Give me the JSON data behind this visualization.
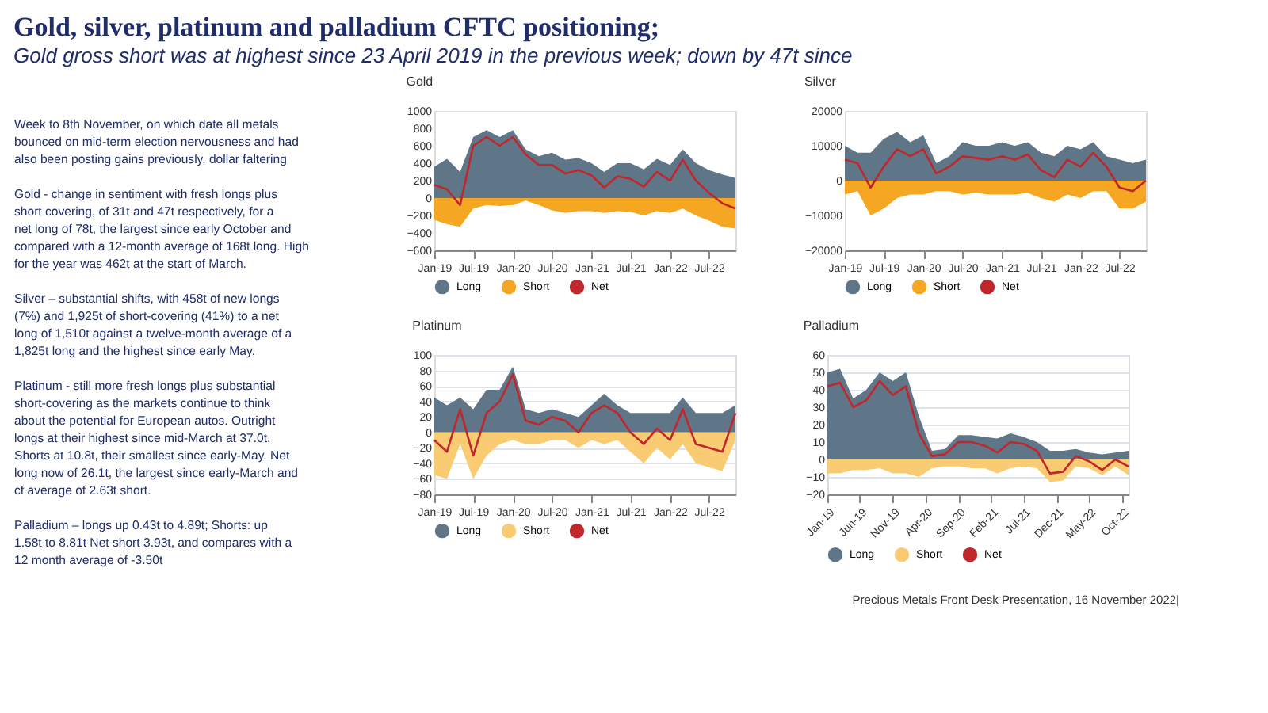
{
  "chart_data": [
    {
      "type": "other",
      "title": "Gold, silver, platinum and palladium CFTC positioning;",
      "subtitle": "Gold gross short was at highest since 23 April 2019 in the previous week; down by 47t since",
      "annotations": [
        "Week to 8th November, on which date all metals bounced on mid-term election nervousness and had also been posting gains previously, dollar faltering",
        "Gold - change in sentiment with fresh longs plus short covering, of 31t and 47t respectively, for a net long of 78t, the largest since early October and compared with a 12-month average of 168t long. High for the year was 462t at the start of March.",
        "Silver – substantial shifts, with 458t of new longs (7%) and 1,925t of short-covering (41%) to a net long of 1,510t against a twelve-month average of a 1,825t long and the highest since early May.",
        "Platinum  - still more fresh longs plus substantial short-covering as the markets continue to think about the potential for European autos.  Outright longs at their highest since mid-March at 37.0t. Shorts at 10.8t, their smallest since early-May. Net long now of 26.1t, the largest since early-March and cf average of 2.63t short.",
        "Palladium – longs up 0.43t to 4.89t; Shorts: up 1.58t to 8.81t Net short 3.93t, and compares with a 12 month average of -3.50t",
        "Precious Metals Front Desk Presentation, 16 November 2022|"
      ]
    },
    {
      "type": "area",
      "title": "Gold",
      "x": [
        "2019-01",
        "2019-03",
        "2019-05",
        "2019-07",
        "2019-09",
        "2019-11",
        "2020-01",
        "2020-03",
        "2020-05",
        "2020-07",
        "2020-09",
        "2020-11",
        "2021-01",
        "2021-03",
        "2021-05",
        "2021-07",
        "2021-09",
        "2021-11",
        "2022-01",
        "2022-03",
        "2022-05",
        "2022-07",
        "2022-09",
        "2022-11"
      ],
      "xlim": [
        "2019-01",
        "2022-11"
      ],
      "xticks": [
        {
          "value": "2019-01",
          "label": "Jan-19"
        },
        {
          "value": "2019-07",
          "label": "Jul-19"
        },
        {
          "value": "2020-01",
          "label": "Jan-20"
        },
        {
          "value": "2020-07",
          "label": "Jul-20"
        },
        {
          "value": "2021-01",
          "label": "Jan-21"
        },
        {
          "value": "2021-07",
          "label": "Jul-21"
        },
        {
          "value": "2022-01",
          "label": "Jan-22"
        },
        {
          "value": "2022-07",
          "label": "Jul-22"
        }
      ],
      "ylim": [
        -600,
        1000
      ],
      "yticks": [
        -600,
        -400,
        -200,
        0,
        200,
        400,
        600,
        800,
        1000
      ],
      "legend": "bottom",
      "grid": false,
      "series": [
        {
          "name": "Long",
          "type": "area",
          "color": "#5f7689",
          "values": [
            360,
            450,
            300,
            700,
            780,
            700,
            780,
            560,
            480,
            520,
            440,
            460,
            400,
            300,
            400,
            400,
            330,
            450,
            380,
            560,
            400,
            320,
            270,
            230
          ]
        },
        {
          "name": "Short",
          "type": "area",
          "color": "#f5a623",
          "values": [
            -250,
            -300,
            -330,
            -120,
            -80,
            -90,
            -80,
            -30,
            -80,
            -140,
            -170,
            -150,
            -150,
            -170,
            -150,
            -160,
            -200,
            -150,
            -170,
            -120,
            -200,
            -260,
            -330,
            -350
          ]
        },
        {
          "name": "Net",
          "type": "line",
          "color": "#c0272d",
          "values": [
            150,
            100,
            -80,
            600,
            700,
            600,
            700,
            500,
            380,
            380,
            280,
            320,
            260,
            120,
            250,
            220,
            130,
            300,
            200,
            440,
            200,
            60,
            -60,
            -120
          ]
        }
      ]
    },
    {
      "type": "area",
      "title": "Silver",
      "x": [
        "2019-01",
        "2019-03",
        "2019-05",
        "2019-07",
        "2019-09",
        "2019-11",
        "2020-01",
        "2020-03",
        "2020-05",
        "2020-07",
        "2020-09",
        "2020-11",
        "2021-01",
        "2021-03",
        "2021-05",
        "2021-07",
        "2021-09",
        "2021-11",
        "2022-01",
        "2022-03",
        "2022-05",
        "2022-07",
        "2022-09",
        "2022-11"
      ],
      "xlim": [
        "2019-01",
        "2022-11"
      ],
      "xticks": [
        {
          "value": "2019-01",
          "label": "Jan-19"
        },
        {
          "value": "2019-07",
          "label": "Jul-19"
        },
        {
          "value": "2020-01",
          "label": "Jan-20"
        },
        {
          "value": "2020-07",
          "label": "Jul-20"
        },
        {
          "value": "2021-01",
          "label": "Jan-21"
        },
        {
          "value": "2021-07",
          "label": "Jul-21"
        },
        {
          "value": "2022-01",
          "label": "Jan-22"
        },
        {
          "value": "2022-07",
          "label": "Jul-22"
        }
      ],
      "ylim": [
        -20000,
        20000
      ],
      "yticks": [
        -20000,
        -10000,
        0,
        10000,
        20000
      ],
      "legend": "bottom",
      "grid": false,
      "series": [
        {
          "name": "Long",
          "type": "area",
          "color": "#5f7689",
          "values": [
            10000,
            8000,
            8000,
            12000,
            14000,
            11000,
            13000,
            5000,
            7000,
            11000,
            10000,
            10000,
            11000,
            10000,
            11000,
            8000,
            7000,
            10000,
            9000,
            11000,
            7000,
            6000,
            5000,
            6000
          ]
        },
        {
          "name": "Short",
          "type": "area",
          "color": "#f5a623",
          "values": [
            -4000,
            -3000,
            -10000,
            -8000,
            -5000,
            -4000,
            -4000,
            -3000,
            -3000,
            -4000,
            -3500,
            -4000,
            -4000,
            -4000,
            -3500,
            -5000,
            -6000,
            -4000,
            -5000,
            -3000,
            -3000,
            -8000,
            -8000,
            -6000
          ]
        },
        {
          "name": "Net",
          "type": "line",
          "color": "#c0272d",
          "values": [
            6000,
            5000,
            -2000,
            4000,
            9000,
            7000,
            9000,
            2000,
            4000,
            7000,
            6500,
            6000,
            7000,
            6000,
            7500,
            3000,
            1000,
            6000,
            4000,
            8000,
            4000,
            -2000,
            -3000,
            0
          ]
        }
      ]
    },
    {
      "type": "area",
      "title": "Platinum",
      "x": [
        "2019-01",
        "2019-03",
        "2019-05",
        "2019-07",
        "2019-09",
        "2019-11",
        "2020-01",
        "2020-03",
        "2020-05",
        "2020-07",
        "2020-09",
        "2020-11",
        "2021-01",
        "2021-03",
        "2021-05",
        "2021-07",
        "2021-09",
        "2021-11",
        "2022-01",
        "2022-03",
        "2022-05",
        "2022-07",
        "2022-09",
        "2022-11"
      ],
      "xlim": [
        "2019-01",
        "2022-11"
      ],
      "xticks": [
        {
          "value": "2019-01",
          "label": "Jan-19"
        },
        {
          "value": "2019-07",
          "label": "Jul-19"
        },
        {
          "value": "2020-01",
          "label": "Jan-20"
        },
        {
          "value": "2020-07",
          "label": "Jul-20"
        },
        {
          "value": "2021-01",
          "label": "Jan-21"
        },
        {
          "value": "2021-07",
          "label": "Jul-21"
        },
        {
          "value": "2022-01",
          "label": "Jan-22"
        },
        {
          "value": "2022-07",
          "label": "Jul-22"
        }
      ],
      "ylim": [
        -80,
        100
      ],
      "yticks": [
        -80,
        -60,
        -40,
        -20,
        0,
        20,
        40,
        60,
        80,
        100
      ],
      "legend": "bottom",
      "grid": "y",
      "series": [
        {
          "name": "Long",
          "type": "area",
          "color": "#5f7689",
          "values": [
            45,
            35,
            45,
            30,
            55,
            55,
            85,
            30,
            25,
            30,
            25,
            20,
            35,
            50,
            35,
            25,
            25,
            25,
            25,
            45,
            25,
            25,
            25,
            35
          ]
        },
        {
          "name": "Short",
          "type": "area",
          "color": "#f9cb73",
          "values": [
            -55,
            -60,
            -15,
            -60,
            -30,
            -15,
            -10,
            -15,
            -15,
            -10,
            -10,
            -20,
            -10,
            -15,
            -10,
            -25,
            -40,
            -20,
            -35,
            -15,
            -40,
            -45,
            -50,
            -10
          ]
        },
        {
          "name": "Net",
          "type": "line",
          "color": "#c0272d",
          "values": [
            -10,
            -25,
            30,
            -30,
            25,
            40,
            75,
            15,
            10,
            20,
            15,
            0,
            25,
            35,
            25,
            0,
            -15,
            5,
            -10,
            30,
            -15,
            -20,
            -25,
            25
          ]
        }
      ]
    },
    {
      "type": "area",
      "title": "Palladium",
      "x": [
        "2019-01",
        "2019-03",
        "2019-05",
        "2019-07",
        "2019-09",
        "2019-11",
        "2020-01",
        "2020-03",
        "2020-05",
        "2020-07",
        "2020-09",
        "2020-11",
        "2021-01",
        "2021-03",
        "2021-05",
        "2021-07",
        "2021-09",
        "2021-11",
        "2022-01",
        "2022-03",
        "2022-05",
        "2022-07",
        "2022-09",
        "2022-11"
      ],
      "xlim": [
        "2019-01",
        "2022-11"
      ],
      "xticks": [
        {
          "value": "2019-01",
          "label": "Jan-19"
        },
        {
          "value": "2019-06",
          "label": "Jun-19"
        },
        {
          "value": "2019-11",
          "label": "Nov-19"
        },
        {
          "value": "2020-04",
          "label": "Apr-20"
        },
        {
          "value": "2020-09",
          "label": "Sep-20"
        },
        {
          "value": "2021-02",
          "label": "Feb-21"
        },
        {
          "value": "2021-07",
          "label": "Jul-21"
        },
        {
          "value": "2021-12",
          "label": "Dec-21"
        },
        {
          "value": "2022-05",
          "label": "May-22"
        },
        {
          "value": "2022-10",
          "label": "Oct-22"
        }
      ],
      "ylim": [
        -20,
        60
      ],
      "yticks": [
        -20,
        -10,
        0,
        10,
        20,
        30,
        40,
        50,
        60
      ],
      "legend": "bottom",
      "grid": "y",
      "series": [
        {
          "name": "Long",
          "type": "area",
          "color": "#5f7689",
          "values": [
            50,
            52,
            35,
            40,
            50,
            45,
            50,
            25,
            5,
            6,
            14,
            14,
            13,
            12,
            15,
            13,
            10,
            5,
            5,
            6,
            4,
            3,
            4,
            5
          ]
        },
        {
          "name": "Short",
          "type": "area",
          "color": "#f9cb73",
          "values": [
            -8,
            -8,
            -6,
            -6,
            -5,
            -8,
            -8,
            -10,
            -5,
            -4,
            -4,
            -5,
            -5,
            -8,
            -5,
            -4,
            -5,
            -13,
            -12,
            -4,
            -5,
            -9,
            -4,
            -9
          ]
        },
        {
          "name": "Net",
          "type": "line",
          "color": "#c0272d",
          "values": [
            42,
            44,
            30,
            34,
            45,
            37,
            42,
            15,
            2,
            3,
            10,
            10,
            8,
            4,
            10,
            9,
            5,
            -8,
            -7,
            2,
            -1,
            -6,
            0,
            -4
          ]
        }
      ]
    }
  ]
}
